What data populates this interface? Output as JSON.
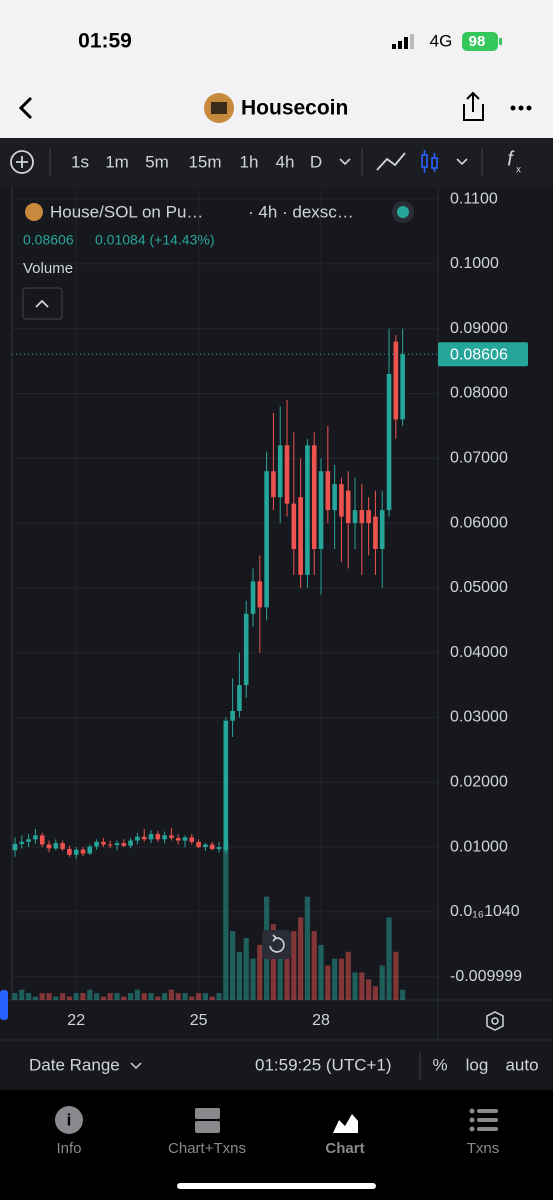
{
  "status_bar": {
    "time": "01:59",
    "network": "4G",
    "battery": 98
  },
  "header": {
    "title": "Housecoin"
  },
  "toolbar": {
    "intervals": [
      "1s",
      "1m",
      "5m",
      "15m",
      "1h",
      "4h",
      "D"
    ]
  },
  "chart_data": {
    "type": "candlestick",
    "pair": "House/SOL on Pu…",
    "source": "· 4h · dexsc…",
    "last_price": 0.08606,
    "change": "0.01084 (+14.43%)",
    "volume_label": "Volume",
    "up_color": "#26a69a",
    "down_color": "#ef5350",
    "open": [
      0.0095,
      0.0105,
      0.0108,
      0.0112,
      0.0118,
      0.0104,
      0.0098,
      0.0106,
      0.0097,
      0.0088,
      0.0096,
      0.009,
      0.0101,
      0.0108,
      0.0104,
      0.0103,
      0.0106,
      0.0102,
      0.011,
      0.0116,
      0.0112,
      0.012,
      0.0112,
      0.0118,
      0.0114,
      0.011,
      0.0115,
      0.0108,
      0.01,
      0.0104,
      0.0097,
      0.0095,
      0.0295,
      0.031,
      0.035,
      0.046,
      0.051,
      0.047,
      0.068,
      0.064,
      0.072,
      0.063,
      0.064,
      0.052,
      0.072,
      0.056,
      0.068,
      0.062,
      0.066,
      0.065,
      0.06,
      0.062,
      0.062,
      0.061,
      0.056,
      0.062,
      0.088,
      0.076
    ],
    "high": [
      0.0115,
      0.0118,
      0.012,
      0.0128,
      0.0122,
      0.011,
      0.0112,
      0.011,
      0.0102,
      0.01,
      0.01,
      0.0104,
      0.0112,
      0.0114,
      0.011,
      0.011,
      0.0112,
      0.0114,
      0.0122,
      0.0128,
      0.0126,
      0.0125,
      0.0124,
      0.013,
      0.012,
      0.0118,
      0.012,
      0.0112,
      0.0106,
      0.0108,
      0.0108,
      0.03,
      0.036,
      0.04,
      0.048,
      0.053,
      0.055,
      0.071,
      0.077,
      0.078,
      0.079,
      0.074,
      0.07,
      0.073,
      0.074,
      0.07,
      0.075,
      0.069,
      0.067,
      0.068,
      0.067,
      0.066,
      0.064,
      0.065,
      0.065,
      0.09,
      0.089,
      0.09
    ],
    "low": [
      0.0085,
      0.0098,
      0.01,
      0.0105,
      0.01,
      0.0092,
      0.0095,
      0.0094,
      0.0085,
      0.0082,
      0.0086,
      0.0088,
      0.0096,
      0.01,
      0.0098,
      0.0095,
      0.01,
      0.0098,
      0.0104,
      0.0108,
      0.0106,
      0.0108,
      0.0106,
      0.011,
      0.0104,
      0.01,
      0.0104,
      0.0098,
      0.0094,
      0.0095,
      0.0092,
      0.009,
      0.027,
      0.03,
      0.033,
      0.044,
      0.04,
      0.045,
      0.062,
      0.06,
      0.061,
      0.052,
      0.05,
      0.05,
      0.052,
      0.049,
      0.06,
      0.056,
      0.054,
      0.053,
      0.056,
      0.052,
      0.055,
      0.052,
      0.05,
      0.061,
      0.073,
      0.075
    ],
    "close": [
      0.0105,
      0.0108,
      0.0112,
      0.0118,
      0.0104,
      0.0098,
      0.0106,
      0.0097,
      0.0088,
      0.0096,
      0.009,
      0.0101,
      0.0108,
      0.0104,
      0.0103,
      0.0106,
      0.0102,
      0.011,
      0.0116,
      0.0112,
      0.012,
      0.0112,
      0.0118,
      0.0114,
      0.011,
      0.0115,
      0.0108,
      0.01,
      0.0104,
      0.0097,
      0.01,
      0.0295,
      0.031,
      0.035,
      0.046,
      0.051,
      0.047,
      0.068,
      0.064,
      0.072,
      0.063,
      0.056,
      0.052,
      0.072,
      0.056,
      0.068,
      0.062,
      0.066,
      0.061,
      0.06,
      0.062,
      0.06,
      0.06,
      0.056,
      0.062,
      0.083,
      0.076,
      0.08606
    ],
    "volume": [
      2,
      3,
      2,
      1,
      2,
      2,
      1,
      2,
      1,
      2,
      2,
      3,
      2,
      1,
      2,
      2,
      1,
      2,
      3,
      2,
      2,
      1,
      2,
      3,
      2,
      2,
      1,
      2,
      2,
      1,
      2,
      45,
      20,
      14,
      18,
      12,
      16,
      30,
      22,
      15,
      14,
      20,
      24,
      30,
      20,
      16,
      10,
      12,
      12,
      14,
      8,
      8,
      6,
      4,
      10,
      24,
      14,
      3
    ],
    "xlim": [
      -0.44,
      62.2
    ],
    "xticks": [
      {
        "value": 9,
        "label": "22"
      },
      {
        "value": 27,
        "label": "25"
      },
      {
        "value": 45,
        "label": "28"
      }
    ],
    "ylim": [
      -0.0136,
      0.1114
    ],
    "yticks": [
      {
        "value": 0.11,
        "label": "0.1100"
      },
      {
        "value": 0.1,
        "label": "0.1000"
      },
      {
        "value": 0.09,
        "label": "0.09000"
      },
      {
        "value": 0.08,
        "label": "0.08000"
      },
      {
        "value": 0.07,
        "label": "0.07000"
      },
      {
        "value": 0.06,
        "label": "0.06000"
      },
      {
        "value": 0.05,
        "label": "0.05000"
      },
      {
        "value": 0.04,
        "label": "0.04000"
      },
      {
        "value": 0.03,
        "label": "0.03000"
      },
      {
        "value": 0.02,
        "label": "0.02000"
      },
      {
        "value": 0.01,
        "label": "0.01000"
      },
      {
        "value": 1.04e-20,
        "label": "0.0₁₆1040"
      },
      {
        "value": -0.009999,
        "label": "-0.009999"
      }
    ],
    "grid": true
  },
  "bottom_bar": {
    "date_range": "Date Range",
    "time": "01:59:25 (UTC+1)",
    "options": [
      "%",
      "log",
      "auto"
    ]
  },
  "nav": {
    "tabs": [
      "Info",
      "Chart+Txns",
      "Chart",
      "Txns"
    ]
  }
}
